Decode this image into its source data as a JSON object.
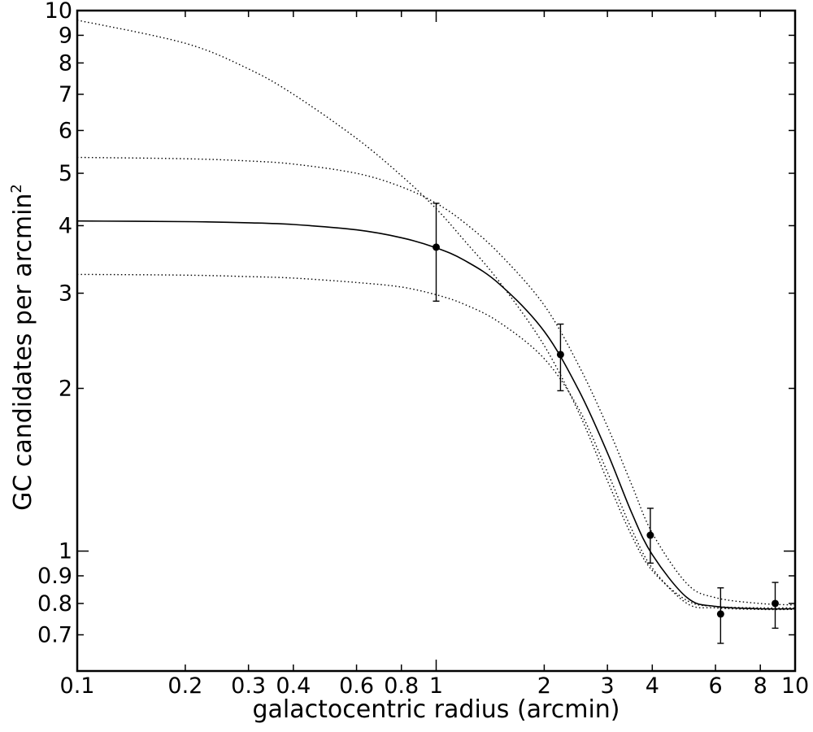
{
  "chart_data": {
    "type": "scatter",
    "xlabel": "galactocentric radius (arcmin)",
    "ylabel": "GC candidates per arcmin",
    "ylabel_superscript": "2",
    "xscale": "log",
    "yscale": "log",
    "xlim": [
      0.1,
      10
    ],
    "ylim": [
      0.6,
      10
    ],
    "grid": false,
    "x_ticks": [
      {
        "value": 0.1,
        "label": "0.1"
      },
      {
        "value": 0.2,
        "label": "0.2"
      },
      {
        "value": 0.3,
        "label": "0.3"
      },
      {
        "value": 0.4,
        "label": "0.4"
      },
      {
        "value": 0.6,
        "label": "0.6"
      },
      {
        "value": 0.8,
        "label": "0.8"
      },
      {
        "value": 1,
        "label": "1"
      },
      {
        "value": 2,
        "label": "2"
      },
      {
        "value": 3,
        "label": "3"
      },
      {
        "value": 4,
        "label": "4"
      },
      {
        "value": 6,
        "label": "6"
      },
      {
        "value": 8,
        "label": "8"
      },
      {
        "value": 10,
        "label": "10"
      }
    ],
    "y_ticks": [
      {
        "value": 0.7,
        "label": "0.7"
      },
      {
        "value": 0.8,
        "label": "0.8"
      },
      {
        "value": 0.9,
        "label": "0.9"
      },
      {
        "value": 1,
        "label": "1"
      },
      {
        "value": 2,
        "label": "2"
      },
      {
        "value": 3,
        "label": "3"
      },
      {
        "value": 4,
        "label": "4"
      },
      {
        "value": 5,
        "label": "5"
      },
      {
        "value": 6,
        "label": "6"
      },
      {
        "value": 7,
        "label": "7"
      },
      {
        "value": 8,
        "label": "8"
      },
      {
        "value": 9,
        "label": "9"
      },
      {
        "value": 10,
        "label": "10"
      }
    ],
    "points": [
      {
        "x": 1.0,
        "y": 3.65,
        "yerr_low": 2.9,
        "yerr_high": 4.4
      },
      {
        "x": 2.22,
        "y": 2.31,
        "yerr_low": 1.98,
        "yerr_high": 2.63
      },
      {
        "x": 3.95,
        "y": 1.07,
        "yerr_low": 0.95,
        "yerr_high": 1.2
      },
      {
        "x": 6.2,
        "y": 0.765,
        "yerr_low": 0.675,
        "yerr_high": 0.855
      },
      {
        "x": 8.8,
        "y": 0.8,
        "yerr_low": 0.72,
        "yerr_high": 0.875
      }
    ],
    "curves": [
      {
        "style": "solid",
        "x": [
          0.1,
          0.2,
          0.3,
          0.4,
          0.6,
          0.8,
          1.0,
          1.2,
          1.5,
          2.0,
          2.5,
          3.0,
          3.5,
          4.0,
          5.0,
          6.0,
          8.0,
          10.0
        ],
        "y": [
          4.08,
          4.07,
          4.05,
          4.02,
          3.93,
          3.8,
          3.64,
          3.45,
          3.12,
          2.55,
          1.98,
          1.52,
          1.18,
          0.985,
          0.82,
          0.79,
          0.782,
          0.782
        ]
      },
      {
        "style": "dotted",
        "x": [
          0.1,
          0.2,
          0.3,
          0.4,
          0.6,
          0.8,
          1.0,
          1.2,
          1.5,
          2.0,
          2.5,
          3.0,
          3.5,
          4.0,
          5.0,
          6.0,
          8.0,
          10.0
        ],
        "y": [
          5.35,
          5.32,
          5.27,
          5.2,
          5.0,
          4.72,
          4.4,
          4.05,
          3.55,
          2.85,
          2.2,
          1.7,
          1.33,
          1.08,
          0.87,
          0.82,
          0.8,
          0.795
        ]
      },
      {
        "style": "dotted",
        "x": [
          0.1,
          0.2,
          0.3,
          0.4,
          0.6,
          0.8,
          1.0,
          1.2,
          1.5,
          2.0,
          2.5,
          3.0,
          3.5,
          4.0,
          5.0,
          6.0,
          8.0,
          10.0
        ],
        "y": [
          3.25,
          3.24,
          3.22,
          3.2,
          3.14,
          3.08,
          2.98,
          2.86,
          2.65,
          2.27,
          1.83,
          1.4,
          1.1,
          0.93,
          0.8,
          0.785,
          0.78,
          0.78
        ]
      },
      {
        "style": "dotted",
        "x": [
          0.1,
          0.2,
          0.3,
          0.4,
          0.6,
          0.8,
          1.0,
          1.2,
          1.5,
          2.0,
          2.5,
          3.0,
          3.5,
          4.0,
          5.0,
          6.0,
          8.0,
          10.0
        ],
        "y": [
          9.6,
          8.7,
          7.8,
          7.0,
          5.8,
          4.95,
          4.3,
          3.75,
          3.15,
          2.4,
          1.8,
          1.35,
          1.07,
          0.92,
          0.81,
          0.79,
          0.785,
          0.785
        ]
      }
    ]
  }
}
